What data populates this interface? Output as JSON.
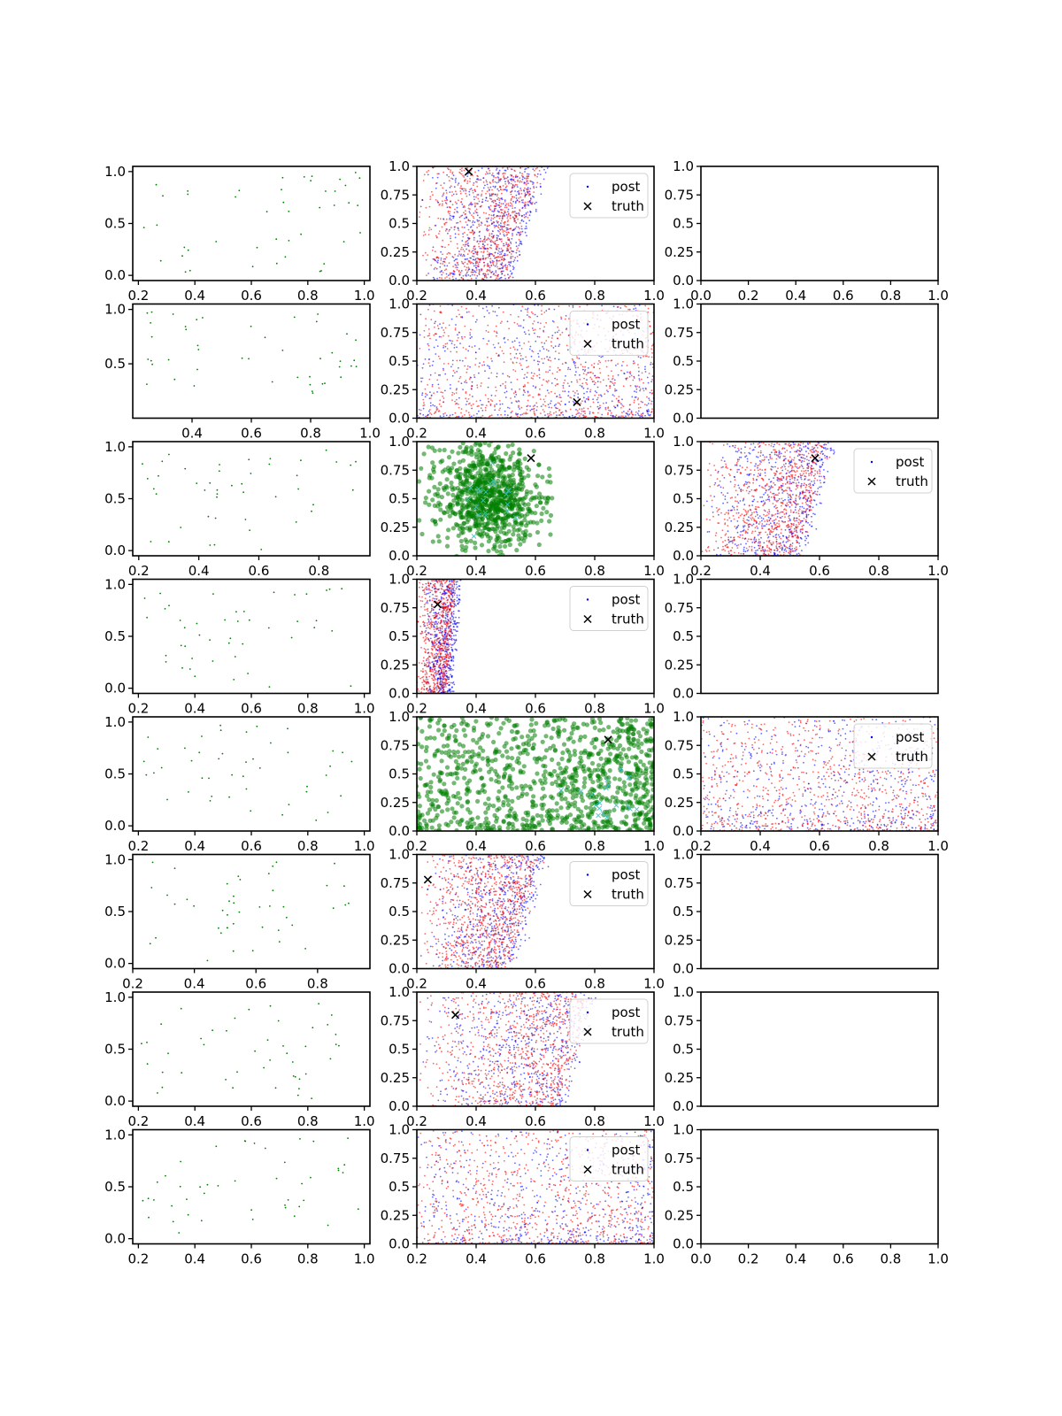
{
  "figure": {
    "rows": 8,
    "cols": 3,
    "colors": {
      "post_blue": "#0000ff",
      "post_red": "#ff0000",
      "prior_green": "#008000",
      "truth_marker": "#000000",
      "highlight_cyan": "#40c0c0"
    }
  },
  "legend": {
    "post_label": "post",
    "truth_label": "truth"
  },
  "chart_data": [
    {
      "row": 0,
      "col": 0,
      "type": "scatter",
      "xlim": [
        0.18,
        1.02
      ],
      "ylim": [
        -0.05,
        1.05
      ],
      "xticks": [
        0.2,
        0.4,
        0.6,
        0.8,
        1.0
      ],
      "yticks": [
        0.0,
        0.5,
        1.0
      ],
      "series": [
        {
          "kind": "green_points",
          "n": 45,
          "seed": 11
        }
      ]
    },
    {
      "row": 0,
      "col": 1,
      "type": "scatter",
      "xlim": [
        0.2,
        1.0
      ],
      "ylim": [
        0.0,
        1.0
      ],
      "xticks": [
        0.2,
        0.4,
        0.6,
        0.8,
        1.0
      ],
      "yticks": [
        0.0,
        0.25,
        0.5,
        0.75,
        1.0
      ],
      "series": [
        {
          "kind": "post",
          "shape": "wedge",
          "x_left": 0.2,
          "x_base_hi": 0.5,
          "x_top_hi": 0.62,
          "spread": 0.1,
          "n": 1400,
          "seed": 21
        }
      ],
      "truth": {
        "x": 0.375,
        "y": 0.955
      },
      "legend": "upper right"
    },
    {
      "row": 0,
      "col": 2,
      "type": "scatter",
      "xlim": [
        0.0,
        1.0
      ],
      "ylim": [
        0.0,
        1.0
      ],
      "xticks": [
        0.0,
        0.2,
        0.4,
        0.6,
        0.8,
        1.0
      ],
      "yticks": [
        0.0,
        0.25,
        0.5,
        0.75,
        1.0
      ],
      "series": []
    },
    {
      "row": 1,
      "col": 0,
      "type": "scatter",
      "xlim": [
        0.2,
        1.0
      ],
      "ylim": [
        0.0,
        1.05
      ],
      "xticks": [
        0.4,
        0.6,
        0.8,
        1.0
      ],
      "yticks": [
        0.5,
        1.0
      ],
      "series": [
        {
          "kind": "green_points",
          "n": 45,
          "seed": 12
        }
      ]
    },
    {
      "row": 1,
      "col": 1,
      "type": "scatter",
      "xlim": [
        0.2,
        1.0
      ],
      "ylim": [
        0.0,
        1.0
      ],
      "xticks": [
        0.2,
        0.4,
        0.6,
        0.8,
        1.0
      ],
      "yticks": [
        0.0,
        0.25,
        0.5,
        0.75,
        1.0
      ],
      "series": [
        {
          "kind": "post",
          "shape": "corner",
          "n": 1500,
          "seed": 22
        }
      ],
      "truth": {
        "x": 0.74,
        "y": 0.14
      },
      "legend": "upper right"
    },
    {
      "row": 1,
      "col": 2,
      "type": "scatter",
      "xlim": [
        0.0,
        1.0
      ],
      "ylim": [
        0.0,
        1.0
      ],
      "xticks": [],
      "yticks": [
        0.0,
        0.25,
        0.5,
        0.75,
        1.0
      ],
      "series": []
    },
    {
      "row": 2,
      "col": 0,
      "type": "scatter",
      "xlim": [
        0.18,
        0.97
      ],
      "ylim": [
        -0.05,
        1.05
      ],
      "xticks": [
        0.2,
        0.4,
        0.6,
        0.8
      ],
      "yticks": [
        0.0,
        0.5,
        1.0
      ],
      "series": [
        {
          "kind": "green_points",
          "n": 45,
          "seed": 13
        }
      ]
    },
    {
      "row": 2,
      "col": 1,
      "type": "scatter",
      "xlim": [
        0.2,
        1.0
      ],
      "ylim": [
        0.0,
        1.0
      ],
      "xticks": [
        0.2,
        0.4,
        0.6,
        0.8,
        1.0
      ],
      "yticks": [
        0.0,
        0.25,
        0.5,
        0.75,
        1.0
      ],
      "series": [
        {
          "kind": "green_cloud",
          "cx": 0.44,
          "cy": 0.52,
          "sx": 0.09,
          "sy": 0.22,
          "x_max": 0.66,
          "n": 900,
          "seed": 23
        }
      ],
      "truth": {
        "x": 0.585,
        "y": 0.855
      }
    },
    {
      "row": 2,
      "col": 2,
      "type": "scatter",
      "xlim": [
        0.2,
        1.0
      ],
      "ylim": [
        0.0,
        1.0
      ],
      "xticks": [
        0.2,
        0.4,
        0.6,
        0.8,
        1.0
      ],
      "yticks": [
        0.0,
        0.25,
        0.5,
        0.75,
        1.0
      ],
      "series": [
        {
          "kind": "post",
          "shape": "wedge",
          "x_left": 0.2,
          "x_base_hi": 0.52,
          "x_top_hi": 0.63,
          "spread": 0.1,
          "n": 1400,
          "seed": 24
        }
      ],
      "truth": {
        "x": 0.585,
        "y": 0.855
      },
      "legend": "upper right"
    },
    {
      "row": 3,
      "col": 0,
      "type": "scatter",
      "xlim": [
        0.18,
        1.02
      ],
      "ylim": [
        -0.05,
        1.05
      ],
      "xticks": [
        0.2,
        0.4,
        0.6,
        0.8,
        1.0
      ],
      "yticks": [
        0.0,
        0.5,
        1.0
      ],
      "series": [
        {
          "kind": "green_points",
          "n": 45,
          "seed": 14
        }
      ]
    },
    {
      "row": 3,
      "col": 1,
      "type": "scatter",
      "xlim": [
        0.2,
        1.0
      ],
      "ylim": [
        0.0,
        1.0
      ],
      "xticks": [
        0.2,
        0.4,
        0.6,
        0.8,
        1.0
      ],
      "yticks": [
        0.0,
        0.25,
        0.5,
        0.75,
        1.0
      ],
      "series": [
        {
          "kind": "post",
          "shape": "band",
          "x_left": 0.2,
          "x_base_hi": 0.3,
          "x_top_hi": 0.33,
          "spread": 0.03,
          "n": 1200,
          "seed": 25
        }
      ],
      "truth": {
        "x": 0.27,
        "y": 0.78
      },
      "legend": "upper right"
    },
    {
      "row": 3,
      "col": 2,
      "type": "scatter",
      "xlim": [
        0.0,
        1.0
      ],
      "ylim": [
        0.0,
        1.0
      ],
      "xticks": [],
      "yticks": [
        0.0,
        0.25,
        0.5,
        0.75,
        1.0
      ],
      "series": []
    },
    {
      "row": 4,
      "col": 0,
      "type": "scatter",
      "xlim": [
        0.18,
        1.02
      ],
      "ylim": [
        -0.05,
        1.05
      ],
      "xticks": [
        0.2,
        0.4,
        0.6,
        0.8,
        1.0
      ],
      "yticks": [
        0.0,
        0.5,
        1.0
      ],
      "series": [
        {
          "kind": "green_points",
          "n": 45,
          "seed": 15
        }
      ]
    },
    {
      "row": 4,
      "col": 1,
      "type": "scatter",
      "xlim": [
        0.2,
        1.0
      ],
      "ylim": [
        0.0,
        1.0
      ],
      "xticks": [
        0.2,
        0.4,
        0.6,
        0.8,
        1.0
      ],
      "yticks": [
        0.0,
        0.25,
        0.5,
        0.75,
        1.0
      ],
      "series": [
        {
          "kind": "green_corner",
          "n": 1100,
          "seed": 26
        }
      ],
      "truth": {
        "x": 0.845,
        "y": 0.8
      }
    },
    {
      "row": 4,
      "col": 2,
      "type": "scatter",
      "xlim": [
        0.2,
        1.0
      ],
      "ylim": [
        0.0,
        1.0
      ],
      "xticks": [
        0.2,
        0.4,
        0.6,
        0.8,
        1.0
      ],
      "yticks": [
        0.0,
        0.25,
        0.5,
        0.75,
        1.0
      ],
      "series": [
        {
          "kind": "post",
          "shape": "corner",
          "n": 1500,
          "seed": 27
        }
      ],
      "legend": "upper right"
    },
    {
      "row": 5,
      "col": 0,
      "type": "scatter",
      "xlim": [
        0.2,
        0.97
      ],
      "ylim": [
        -0.05,
        1.05
      ],
      "xticks": [
        0.2,
        0.4,
        0.6,
        0.8
      ],
      "yticks": [
        0.0,
        0.5,
        1.0
      ],
      "series": [
        {
          "kind": "green_points",
          "n": 45,
          "seed": 16
        }
      ]
    },
    {
      "row": 5,
      "col": 1,
      "type": "scatter",
      "xlim": [
        0.2,
        1.0
      ],
      "ylim": [
        0.0,
        1.0
      ],
      "xticks": [
        0.2,
        0.4,
        0.6,
        0.8,
        1.0
      ],
      "yticks": [
        0.0,
        0.25,
        0.5,
        0.75,
        1.0
      ],
      "series": [
        {
          "kind": "post",
          "shape": "wedge",
          "x_left": 0.2,
          "x_base_hi": 0.5,
          "x_top_hi": 0.62,
          "spread": 0.1,
          "n": 1400,
          "seed": 28
        }
      ],
      "truth": {
        "x": 0.237,
        "y": 0.78
      },
      "legend": "upper right"
    },
    {
      "row": 5,
      "col": 2,
      "type": "scatter",
      "xlim": [
        0.0,
        1.0
      ],
      "ylim": [
        0.0,
        1.0
      ],
      "xticks": [],
      "yticks": [
        0.0,
        0.25,
        0.5,
        0.75,
        1.0
      ],
      "series": []
    },
    {
      "row": 6,
      "col": 0,
      "type": "scatter",
      "xlim": [
        0.18,
        1.02
      ],
      "ylim": [
        -0.05,
        1.05
      ],
      "xticks": [
        0.2,
        0.4,
        0.6,
        0.8,
        1.0
      ],
      "yticks": [
        0.0,
        0.5,
        1.0
      ],
      "series": [
        {
          "kind": "green_points",
          "n": 45,
          "seed": 17
        }
      ]
    },
    {
      "row": 6,
      "col": 1,
      "type": "scatter",
      "xlim": [
        0.2,
        1.0
      ],
      "ylim": [
        0.0,
        1.0
      ],
      "xticks": [
        0.2,
        0.4,
        0.6,
        0.8,
        1.0
      ],
      "yticks": [
        0.0,
        0.25,
        0.5,
        0.75,
        1.0
      ],
      "series": [
        {
          "kind": "post",
          "shape": "wedge",
          "x_left": 0.2,
          "x_base_hi": 0.68,
          "x_top_hi": 0.78,
          "spread": 0.1,
          "n": 1400,
          "seed": 29
        }
      ],
      "truth": {
        "x": 0.33,
        "y": 0.8
      },
      "legend": "upper right"
    },
    {
      "row": 6,
      "col": 2,
      "type": "scatter",
      "xlim": [
        0.0,
        1.0
      ],
      "ylim": [
        0.0,
        1.0
      ],
      "xticks": [],
      "yticks": [
        0.0,
        0.25,
        0.5,
        0.75,
        1.0
      ],
      "series": []
    },
    {
      "row": 7,
      "col": 0,
      "type": "scatter",
      "xlim": [
        0.18,
        1.02
      ],
      "ylim": [
        -0.05,
        1.05
      ],
      "xticks": [
        0.2,
        0.4,
        0.6,
        0.8,
        1.0
      ],
      "yticks": [
        0.0,
        0.5,
        1.0
      ],
      "series": [
        {
          "kind": "green_points",
          "n": 45,
          "seed": 18
        }
      ]
    },
    {
      "row": 7,
      "col": 1,
      "type": "scatter",
      "xlim": [
        0.2,
        1.0
      ],
      "ylim": [
        0.0,
        1.0
      ],
      "xticks": [
        0.2,
        0.4,
        0.6,
        0.8,
        1.0
      ],
      "yticks": [
        0.0,
        0.25,
        0.5,
        0.75,
        1.0
      ],
      "series": [
        {
          "kind": "post",
          "shape": "corner",
          "n": 1500,
          "seed": 30
        }
      ],
      "legend": "upper right"
    },
    {
      "row": 7,
      "col": 2,
      "type": "scatter",
      "xlim": [
        0.0,
        1.0
      ],
      "ylim": [
        0.0,
        1.0
      ],
      "xticks": [
        0.0,
        0.2,
        0.4,
        0.6,
        0.8,
        1.0
      ],
      "yticks": [
        0.0,
        0.25,
        0.5,
        0.75,
        1.0
      ],
      "series": []
    }
  ]
}
